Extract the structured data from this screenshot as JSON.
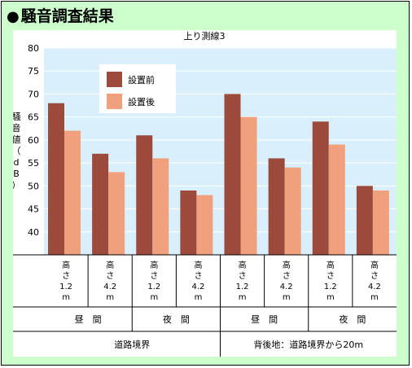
{
  "heading": {
    "bullet": "●",
    "title": "騒音調査結果"
  },
  "chart_data": {
    "type": "bar",
    "title": "上り測線3",
    "ylabel": "騒音値（dB）",
    "ylim": [
      35,
      80
    ],
    "yticks": [
      40,
      45,
      50,
      55,
      60,
      65,
      70,
      75,
      80
    ],
    "grid": true,
    "legend": "top-left",
    "categories": [
      "高さ1.2m",
      "高さ4.2m",
      "高さ1.2m",
      "高さ4.2m",
      "高さ1.2m",
      "高さ4.2m",
      "高さ1.2m",
      "高さ4.2m"
    ],
    "series": [
      {
        "name": "設置前",
        "color": "#9c4a3c",
        "values": [
          68,
          57,
          61,
          49,
          70,
          56,
          64,
          50
        ]
      },
      {
        "name": "設置後",
        "color": "#f0a07c",
        "values": [
          62,
          53,
          56,
          48,
          65,
          54,
          59,
          49
        ]
      }
    ],
    "height_labels": [
      [
        "高",
        "さ",
        "1.2",
        "m"
      ],
      [
        "高",
        "さ",
        "4.2",
        "m"
      ],
      [
        "高",
        "さ",
        "1.2",
        "m"
      ],
      [
        "高",
        "さ",
        "4.2",
        "m"
      ],
      [
        "高",
        "さ",
        "1.2",
        "m"
      ],
      [
        "高",
        "さ",
        "4.2",
        "m"
      ],
      [
        "高",
        "さ",
        "1.2",
        "m"
      ],
      [
        "高",
        "さ",
        "4.2",
        "m"
      ]
    ],
    "time_labels": [
      "昼　間",
      "夜　間",
      "昼　間",
      "夜　間"
    ],
    "location_labels": [
      "道路境界",
      "背後地：道路境界から20m"
    ]
  },
  "colors": {
    "background": "#ccffcc",
    "plot_background": "#d9f0fc",
    "grid": "#ffffff"
  }
}
